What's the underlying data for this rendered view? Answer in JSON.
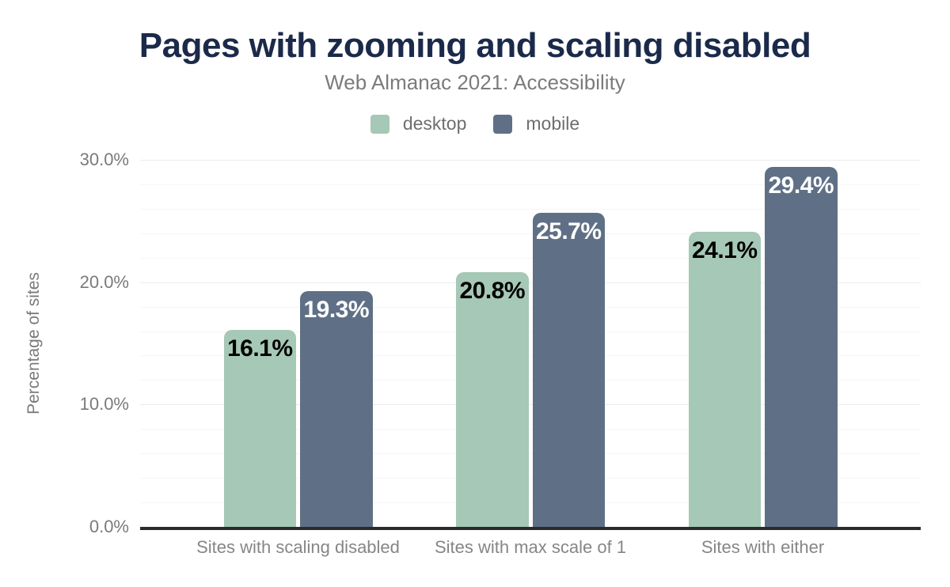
{
  "title": "Pages with zooming and scaling disabled",
  "subtitle": "Web Almanac 2021: Accessibility",
  "legend": {
    "items": [
      {
        "label": "desktop",
        "color": "#a6c8b6"
      },
      {
        "label": "mobile",
        "color": "#5f7086"
      }
    ]
  },
  "chart_data": {
    "type": "bar",
    "title": "Pages with zooming and scaling disabled",
    "subtitle": "Web Almanac 2021: Accessibility",
    "categories": [
      "Sites with scaling disabled",
      "Sites with max scale of 1",
      "Sites with either"
    ],
    "series": [
      {
        "name": "desktop",
        "color": "#a6c8b6",
        "label_color": "#000000",
        "values": [
          16.1,
          20.8,
          24.1
        ],
        "value_labels": [
          "16.1%",
          "20.8%",
          "24.1%"
        ]
      },
      {
        "name": "mobile",
        "color": "#5f7086",
        "label_color": "#ffffff",
        "values": [
          19.3,
          25.7,
          29.4
        ],
        "value_labels": [
          "19.3%",
          "25.7%",
          "29.4%"
        ]
      }
    ],
    "xlabel": "",
    "ylabel": "Percentage of sites",
    "ylim": [
      0,
      30
    ],
    "y_ticks": [
      {
        "value": 0,
        "label": "0.0%"
      },
      {
        "value": 10,
        "label": "10.0%"
      },
      {
        "value": 20,
        "label": "20.0%"
      },
      {
        "value": 30,
        "label": "30.0%"
      }
    ],
    "grid": {
      "minor_step": 2,
      "major_step": 10,
      "orientation": "horizontal"
    },
    "legend_position": "top",
    "value_labels_shown": true
  },
  "colors": {
    "title": "#1b2a4a",
    "subtitle_text": "#7b7b7b",
    "axis_line": "#2b2b2b",
    "tick_text": "#7a7a7a",
    "category_text": "#868686",
    "grid_minor": "#f6f6f6",
    "grid_major": "#ececec",
    "background": "#ffffff"
  }
}
